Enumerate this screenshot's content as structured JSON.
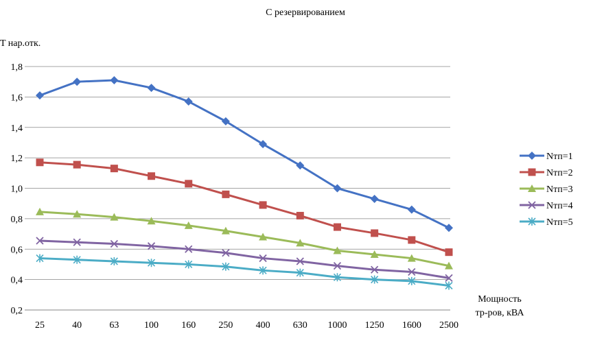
{
  "chart_data": {
    "type": "line",
    "title": "С резервированием",
    "ylabel": "T нар.отк.",
    "xlabel": [
      "Мощность",
      "тр-ров, кВА"
    ],
    "categories": [
      "25",
      "40",
      "63",
      "100",
      "160",
      "250",
      "400",
      "630",
      "1000",
      "1250",
      "1600",
      "2500"
    ],
    "ylim": [
      0.2,
      1.8
    ],
    "yticks": [
      0.2,
      0.4,
      0.6,
      0.8,
      1.0,
      1.2,
      1.4,
      1.6,
      1.8
    ],
    "ytick_labels": [
      "0,2",
      "0,4",
      "0,6",
      "0,8",
      "1,0",
      "1,2",
      "1,4",
      "1,6",
      "1,8"
    ],
    "grid": true,
    "legend_position": "right",
    "series": [
      {
        "name": "Nтп=1",
        "color": "#4472C4",
        "marker": "diamond",
        "values": [
          1.61,
          1.7,
          1.71,
          1.66,
          1.57,
          1.44,
          1.29,
          1.15,
          1.0,
          0.93,
          0.86,
          0.74
        ]
      },
      {
        "name": "Nтп=2",
        "color": "#C0504D",
        "marker": "square",
        "values": [
          1.17,
          1.155,
          1.13,
          1.08,
          1.03,
          0.96,
          0.89,
          0.82,
          0.745,
          0.705,
          0.66,
          0.58
        ]
      },
      {
        "name": "Nтп=3",
        "color": "#9BBB59",
        "marker": "triangle",
        "values": [
          0.845,
          0.83,
          0.81,
          0.785,
          0.755,
          0.72,
          0.68,
          0.64,
          0.59,
          0.565,
          0.54,
          0.49
        ]
      },
      {
        "name": "Nтп=4",
        "color": "#8064A2",
        "marker": "x",
        "values": [
          0.655,
          0.645,
          0.635,
          0.62,
          0.6,
          0.575,
          0.54,
          0.52,
          0.49,
          0.465,
          0.45,
          0.41
        ]
      },
      {
        "name": "Nтп=5",
        "color": "#4BACC6",
        "marker": "star",
        "values": [
          0.54,
          0.53,
          0.52,
          0.51,
          0.5,
          0.485,
          0.46,
          0.445,
          0.415,
          0.4,
          0.39,
          0.36
        ]
      }
    ]
  }
}
